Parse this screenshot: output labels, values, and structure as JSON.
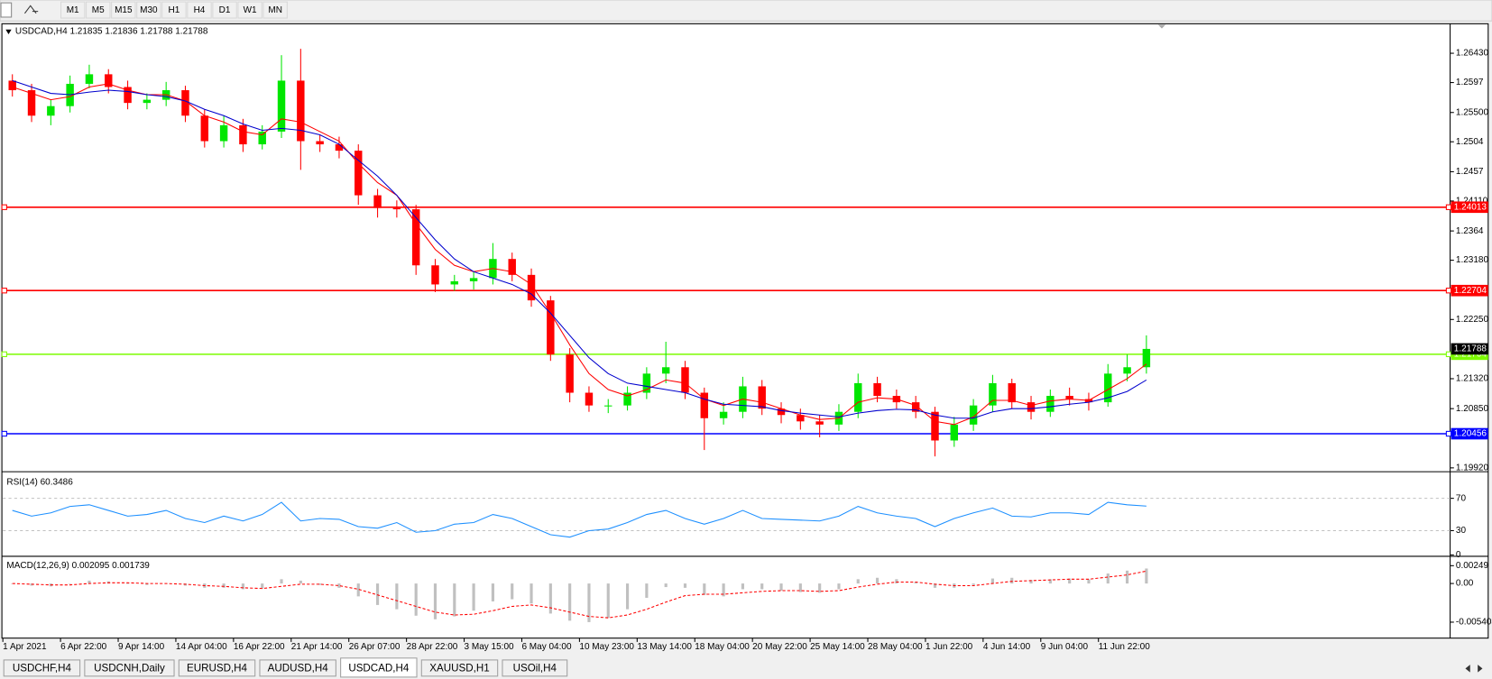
{
  "toolbar": {
    "timeframes": [
      "M1",
      "M5",
      "M15",
      "M30",
      "H1",
      "H4",
      "D1",
      "W1",
      "MN"
    ]
  },
  "chart_data": [
    {
      "type": "candlestick",
      "title": "USDCAD,H4  1.21835 1.21836 1.21788 1.21788",
      "categories": [
        "1 Apr 2021",
        null,
        null,
        "6 Apr 22:00",
        null,
        null,
        "9 Apr 14:00",
        null,
        null,
        "14 Apr 04:00",
        null,
        null,
        "16 Apr 22:00",
        null,
        null,
        "21 Apr 14:00",
        null,
        null,
        "26 Apr 07:00",
        null,
        null,
        "28 Apr 22:00",
        null,
        null,
        "3 May 15:00",
        null,
        null,
        "6 May 04:00",
        null,
        null,
        "10 May 23:00",
        null,
        null,
        "13 May 14:00",
        null,
        null,
        "18 May 04:00",
        null,
        null,
        "20 May 22:00",
        null,
        null,
        "25 May 14:00",
        null,
        null,
        "28 May 04:00",
        null,
        null,
        "1 Jun 22:00",
        null,
        null,
        "4 Jun 14:00",
        null,
        null,
        "9 Jun 04:00",
        null,
        null,
        "11 Jun 22:00",
        null,
        null
      ],
      "open": [
        1.26,
        1.2585,
        1.2545,
        1.256,
        1.2595,
        1.261,
        1.259,
        1.2565,
        1.257,
        1.2585,
        1.2545,
        1.2505,
        1.253,
        1.25,
        1.252,
        1.26,
        1.2505,
        1.25,
        1.249,
        1.242,
        1.24,
        1.2398,
        1.231,
        1.228,
        1.2285,
        1.229,
        1.232,
        1.2295,
        1.2255,
        1.217,
        1.211,
        1.209,
        1.209,
        1.211,
        1.214,
        1.215,
        1.211,
        1.207,
        1.208,
        1.212,
        1.2085,
        1.2075,
        1.2065,
        1.206,
        1.208,
        1.2125,
        1.2105,
        1.2095,
        1.208,
        1.2035,
        1.206,
        1.209,
        1.2125,
        1.2095,
        1.208,
        1.2105,
        1.21,
        1.2095,
        1.214,
        1.215
      ],
      "high": [
        1.261,
        1.2595,
        1.257,
        1.2608,
        1.2625,
        1.2618,
        1.26,
        1.258,
        1.2598,
        1.2592,
        1.2555,
        1.2545,
        1.254,
        1.253,
        1.264,
        1.265,
        1.2515,
        1.2512,
        1.25,
        1.243,
        1.2412,
        1.2405,
        1.232,
        1.2295,
        1.23,
        1.2345,
        1.233,
        1.2305,
        1.2262,
        1.218,
        1.212,
        1.21,
        1.212,
        1.215,
        1.219,
        1.216,
        1.2118,
        1.2095,
        1.2135,
        1.213,
        1.2095,
        1.2085,
        1.2075,
        1.2092,
        1.214,
        1.2135,
        1.2115,
        1.2105,
        1.2088,
        1.2072,
        1.21,
        1.2138,
        1.2132,
        1.2105,
        1.2115,
        1.2118,
        1.211,
        1.2155,
        1.217,
        1.22
      ],
      "low": [
        1.2575,
        1.2535,
        1.253,
        1.255,
        1.2588,
        1.258,
        1.2555,
        1.2555,
        1.256,
        1.2535,
        1.2495,
        1.2495,
        1.2488,
        1.2492,
        1.251,
        1.246,
        1.2488,
        1.2478,
        1.2405,
        1.2385,
        1.2385,
        1.2295,
        1.2268,
        1.227,
        1.2272,
        1.228,
        1.2285,
        1.2245,
        1.216,
        1.2095,
        1.208,
        1.2078,
        1.2082,
        1.21,
        1.2125,
        1.21,
        1.202,
        1.206,
        1.207,
        1.2075,
        1.2062,
        1.2052,
        1.204,
        1.205,
        1.207,
        1.2095,
        1.2085,
        1.207,
        1.201,
        1.2025,
        1.205,
        1.208,
        1.2085,
        1.2068,
        1.2072,
        1.209,
        1.2082,
        1.2088,
        1.2128,
        1.214
      ],
      "close": [
        1.2585,
        1.2545,
        1.256,
        1.2595,
        1.261,
        1.259,
        1.2565,
        1.257,
        1.2585,
        1.2545,
        1.2505,
        1.253,
        1.25,
        1.252,
        1.26,
        1.2505,
        1.25,
        1.249,
        1.242,
        1.24,
        1.2398,
        1.231,
        1.228,
        1.2285,
        1.229,
        1.232,
        1.2295,
        1.2255,
        1.217,
        1.211,
        1.209,
        1.209,
        1.211,
        1.214,
        1.215,
        1.211,
        1.207,
        1.208,
        1.212,
        1.2085,
        1.2075,
        1.2065,
        1.206,
        1.208,
        1.2125,
        1.2105,
        1.2095,
        1.208,
        1.2035,
        1.206,
        1.209,
        1.2125,
        1.2095,
        1.208,
        1.2105,
        1.21,
        1.2095,
        1.214,
        1.215,
        1.21788
      ],
      "up_color": "#00e600",
      "down_color": "#ff0000",
      "lines": [
        {
          "color": "#ff0000",
          "values": [
            1.259,
            1.258,
            1.257,
            1.2575,
            1.259,
            1.2595,
            1.2585,
            1.2578,
            1.2578,
            1.2568,
            1.2545,
            1.2535,
            1.252,
            1.2515,
            1.254,
            1.2535,
            1.252,
            1.2505,
            1.247,
            1.244,
            1.242,
            1.2375,
            1.2335,
            1.231,
            1.23,
            1.2305,
            1.23,
            1.228,
            1.2235,
            1.2185,
            1.214,
            1.2115,
            1.2105,
            1.2115,
            1.213,
            1.2125,
            1.21,
            1.209,
            1.21,
            1.2095,
            1.2085,
            1.2075,
            1.2068,
            1.207,
            1.2095,
            1.2102,
            1.21,
            1.209,
            1.2065,
            1.206,
            1.2072,
            1.2098,
            1.2098,
            1.209,
            1.2097,
            1.21,
            1.2098,
            1.2115,
            1.2132,
            1.2155
          ]
        },
        {
          "color": "#0000cd",
          "values": [
            1.26,
            1.259,
            1.258,
            1.2578,
            1.2582,
            1.2585,
            1.2583,
            1.2578,
            1.2575,
            1.2568,
            1.2555,
            1.2545,
            1.2532,
            1.2522,
            1.2525,
            1.2522,
            1.2515,
            1.25,
            1.2475,
            1.245,
            1.242,
            1.2385,
            1.235,
            1.232,
            1.23,
            1.229,
            1.228,
            1.2265,
            1.2235,
            1.22,
            1.2165,
            1.214,
            1.2125,
            1.212,
            1.2115,
            1.211,
            1.21,
            1.2092,
            1.209,
            1.2088,
            1.2082,
            1.2078,
            1.2075,
            1.2072,
            1.2078,
            1.2082,
            1.2084,
            1.2083,
            1.2075,
            1.207,
            1.207,
            1.208,
            1.2085,
            1.2085,
            1.2088,
            1.2092,
            1.2095,
            1.2102,
            1.2112,
            1.213
          ]
        }
      ],
      "levels": [
        {
          "value": 1.24013,
          "color": "#ff0000"
        },
        {
          "value": 1.22704,
          "color": "#ff0000"
        },
        {
          "value": 1.21704,
          "color": "#7cfc00"
        },
        {
          "value": 1.20456,
          "color": "#0000ff"
        }
      ],
      "last_price": 1.21788,
      "ylim": [
        1.19875,
        1.26878
      ],
      "yticks": [
        {
          "value": 1.2643,
          "label": "1.26430"
        },
        1.2597,
        {
          "value": 1.255,
          "label": "1.25500"
        },
        1.2504,
        1.2457,
        {
          "value": 1.2411,
          "label": "1.24110"
        },
        1.2364,
        {
          "value": 1.2318,
          "label": "1.23180"
        },
        {
          "value": 1.2225,
          "label": "1.22250"
        },
        {
          "value": 1.2132,
          "label": "1.21320"
        },
        {
          "value": 1.2085,
          "label": "1.20850"
        },
        {
          "value": 1.1992,
          "label": "1.19920"
        }
      ]
    },
    {
      "type": "line",
      "title": "RSI(14) 60.3486",
      "color": "#1e90ff",
      "values": [
        55,
        48,
        52,
        60,
        62,
        55,
        48,
        50,
        55,
        45,
        40,
        48,
        42,
        50,
        65,
        42,
        45,
        44,
        35,
        33,
        40,
        28,
        30,
        38,
        40,
        50,
        45,
        35,
        25,
        22,
        30,
        32,
        40,
        50,
        55,
        45,
        38,
        45,
        55,
        45,
        44,
        43,
        42,
        48,
        60,
        52,
        48,
        45,
        35,
        45,
        52,
        58,
        48,
        47,
        52,
        52,
        50,
        65,
        62,
        60.3486
      ],
      "ylim": [
        0,
        100
      ],
      "yticks": [
        70,
        30,
        0
      ],
      "grid": "dashed"
    },
    {
      "type": "macd",
      "title": "MACD(12,26,9) 0.002095 0.001739",
      "values": [
        0,
        -0.0003,
        -0.0004,
        0,
        0.0004,
        0.0003,
        0,
        -0.0002,
        0,
        -0.0003,
        -0.0006,
        -0.0006,
        -0.0008,
        -0.0007,
        0.0006,
        0.0004,
        -0.0002,
        -0.0006,
        -0.0018,
        -0.003,
        -0.0036,
        -0.0045,
        -0.005,
        -0.0046,
        -0.0038,
        -0.0025,
        -0.0022,
        -0.0028,
        -0.0042,
        -0.0052,
        -0.0054,
        -0.0048,
        -0.0036,
        -0.002,
        -0.0005,
        -0.0006,
        -0.0016,
        -0.0018,
        -0.0008,
        -0.0008,
        -0.001,
        -0.0012,
        -0.0013,
        -0.0008,
        0.0006,
        0.0008,
        0.0006,
        0.0002,
        -0.0006,
        -0.0006,
        -0.0002,
        0.0007,
        0.0008,
        0.0005,
        0.0006,
        0.0007,
        0.0006,
        0.0014,
        0.0018,
        0.002095
      ],
      "signal": [
        0,
        -0.0001,
        -0.0002,
        -0.0002,
        0,
        0.0001,
        0.0001,
        0,
        0,
        -0.0001,
        -0.0003,
        -0.0004,
        -0.0006,
        -0.0007,
        -0.0004,
        -0.0001,
        -0.0001,
        -0.0003,
        -0.0008,
        -0.0016,
        -0.0024,
        -0.0032,
        -0.004,
        -0.0044,
        -0.0043,
        -0.0038,
        -0.0032,
        -0.003,
        -0.0034,
        -0.004,
        -0.0046,
        -0.0048,
        -0.0044,
        -0.0036,
        -0.0026,
        -0.0017,
        -0.0015,
        -0.0015,
        -0.0013,
        -0.0011,
        -0.001,
        -0.001,
        -0.0011,
        -0.001,
        -0.0005,
        -0.0001,
        0.0002,
        0.0002,
        -0.0001,
        -0.0003,
        -0.0003,
        0,
        0.0003,
        0.0004,
        0.0005,
        0.0006,
        0.0006,
        0.0009,
        0.0012,
        0.001739
      ],
      "color": "#c0c0c0",
      "signal_color": "#ff0000",
      "ylim": [
        -0.0075,
        0.0034
      ],
      "yticks": [
        0.00249,
        {
          "value": 0,
          "label": "0.00"
        },
        -0.005403
      ]
    }
  ],
  "tabs": {
    "items": [
      "USDCHF,H4",
      "USDCNH,Daily",
      "EURUSD,H4",
      "AUDUSD,H4",
      "USDCAD,H4",
      "XAUUSD,H1",
      "USOil,H4"
    ],
    "active": 4
  }
}
